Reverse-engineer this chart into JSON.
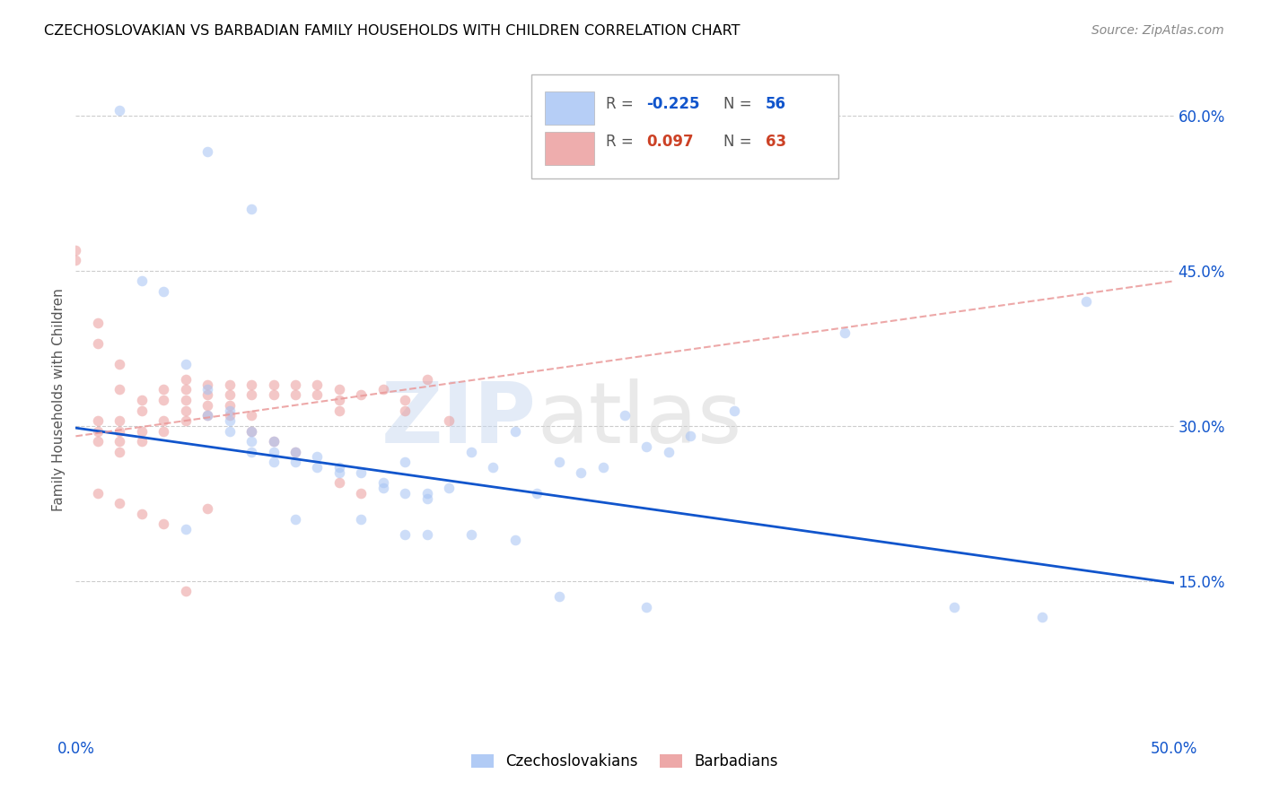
{
  "title": "CZECHOSLOVAKIAN VS BARBADIAN FAMILY HOUSEHOLDS WITH CHILDREN CORRELATION CHART",
  "source": "Source: ZipAtlas.com",
  "ylabel": "Family Households with Children",
  "xmin": 0.0,
  "xmax": 0.5,
  "ymin": 0.0,
  "ymax": 0.65,
  "yticks": [
    0.15,
    0.3,
    0.45,
    0.6
  ],
  "xticks": [
    0.0,
    0.5
  ],
  "xtick_labels": [
    "0.0%",
    "50.0%"
  ],
  "ytick_labels": [
    "15.0%",
    "30.0%",
    "45.0%",
    "60.0%"
  ],
  "blue_scatter_x": [
    0.02,
    0.06,
    0.08,
    0.03,
    0.04,
    0.05,
    0.06,
    0.06,
    0.07,
    0.07,
    0.07,
    0.08,
    0.08,
    0.08,
    0.09,
    0.09,
    0.09,
    0.1,
    0.1,
    0.11,
    0.11,
    0.12,
    0.12,
    0.13,
    0.14,
    0.14,
    0.15,
    0.15,
    0.16,
    0.16,
    0.17,
    0.18,
    0.19,
    0.2,
    0.21,
    0.22,
    0.23,
    0.24,
    0.25,
    0.26,
    0.27,
    0.28,
    0.3,
    0.35,
    0.44,
    0.46,
    0.05,
    0.1,
    0.13,
    0.15,
    0.16,
    0.18,
    0.2,
    0.22,
    0.26,
    0.4
  ],
  "blue_scatter_y": [
    0.605,
    0.565,
    0.51,
    0.44,
    0.43,
    0.36,
    0.335,
    0.31,
    0.315,
    0.305,
    0.295,
    0.295,
    0.285,
    0.275,
    0.285,
    0.275,
    0.265,
    0.275,
    0.265,
    0.27,
    0.26,
    0.26,
    0.255,
    0.255,
    0.245,
    0.24,
    0.235,
    0.265,
    0.235,
    0.23,
    0.24,
    0.275,
    0.26,
    0.295,
    0.235,
    0.265,
    0.255,
    0.26,
    0.31,
    0.28,
    0.275,
    0.29,
    0.315,
    0.39,
    0.115,
    0.42,
    0.2,
    0.21,
    0.21,
    0.195,
    0.195,
    0.195,
    0.19,
    0.135,
    0.125,
    0.125
  ],
  "pink_scatter_x": [
    0.0,
    0.0,
    0.01,
    0.01,
    0.01,
    0.01,
    0.01,
    0.02,
    0.02,
    0.02,
    0.02,
    0.02,
    0.02,
    0.03,
    0.03,
    0.03,
    0.03,
    0.04,
    0.04,
    0.04,
    0.04,
    0.05,
    0.05,
    0.05,
    0.05,
    0.05,
    0.06,
    0.06,
    0.06,
    0.06,
    0.07,
    0.07,
    0.07,
    0.07,
    0.08,
    0.08,
    0.08,
    0.09,
    0.09,
    0.1,
    0.1,
    0.11,
    0.11,
    0.12,
    0.12,
    0.12,
    0.13,
    0.14,
    0.15,
    0.15,
    0.16,
    0.17,
    0.08,
    0.09,
    0.1,
    0.05,
    0.06,
    0.12,
    0.13,
    0.01,
    0.02,
    0.03,
    0.04
  ],
  "pink_scatter_y": [
    0.47,
    0.46,
    0.4,
    0.38,
    0.305,
    0.295,
    0.285,
    0.36,
    0.335,
    0.305,
    0.295,
    0.285,
    0.275,
    0.325,
    0.315,
    0.295,
    0.285,
    0.335,
    0.325,
    0.305,
    0.295,
    0.345,
    0.335,
    0.325,
    0.315,
    0.305,
    0.34,
    0.33,
    0.32,
    0.31,
    0.34,
    0.33,
    0.32,
    0.31,
    0.34,
    0.33,
    0.31,
    0.34,
    0.33,
    0.34,
    0.33,
    0.34,
    0.33,
    0.335,
    0.325,
    0.315,
    0.33,
    0.335,
    0.325,
    0.315,
    0.345,
    0.305,
    0.295,
    0.285,
    0.275,
    0.14,
    0.22,
    0.245,
    0.235,
    0.235,
    0.225,
    0.215,
    0.205
  ],
  "blue_line_x": [
    0.0,
    0.5
  ],
  "blue_line_y": [
    0.298,
    0.148
  ],
  "pink_line_x": [
    0.0,
    0.5
  ],
  "pink_line_y": [
    0.29,
    0.44
  ],
  "scatter_alpha": 0.55,
  "scatter_size": 70,
  "blue_color": "#a4c2f4",
  "pink_color": "#ea9999",
  "blue_line_color": "#1155cc",
  "pink_line_color": "#cc4125",
  "background_color": "#ffffff",
  "grid_color": "#cccccc",
  "tick_color": "#1155cc",
  "title_color": "#000000",
  "source_color": "#888888",
  "legend_r_blue": "-0.225",
  "legend_n_blue": "56",
  "legend_r_pink": "0.097",
  "legend_n_pink": "63"
}
